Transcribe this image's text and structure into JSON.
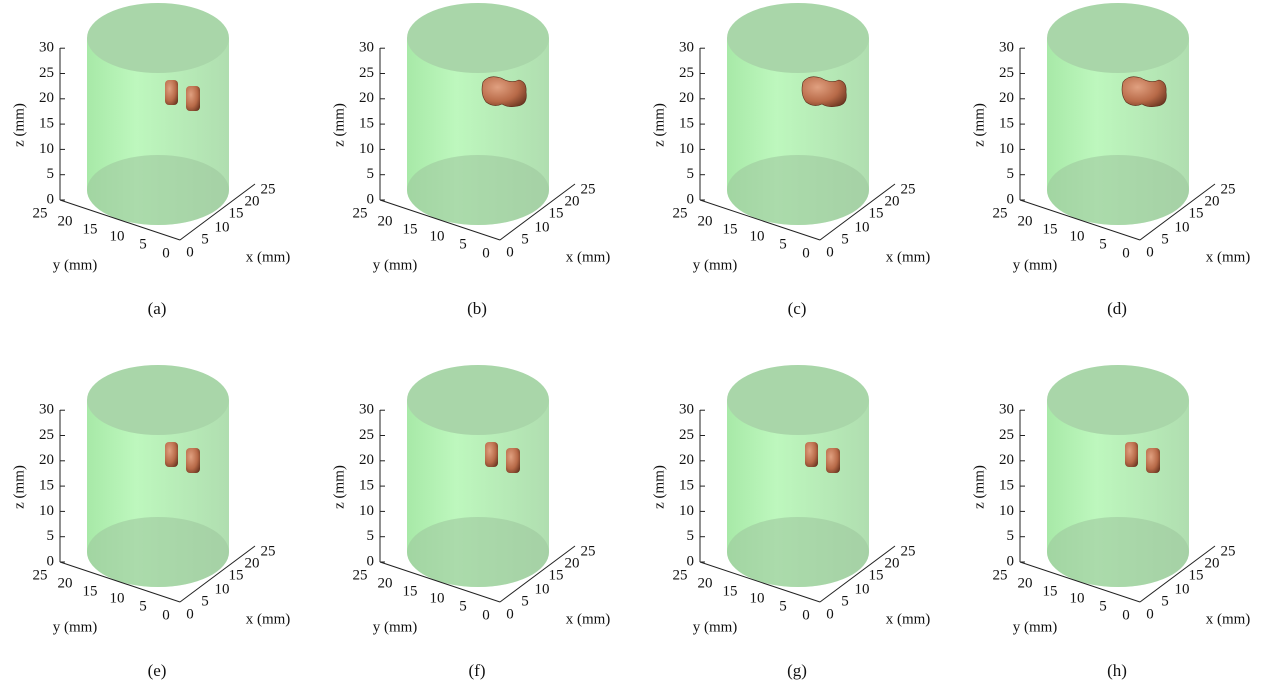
{
  "axes": {
    "x_label": "x (mm)",
    "y_label": "y (mm)",
    "z_label": "z (mm)",
    "zticks": [
      "0",
      "5",
      "10",
      "15",
      "20",
      "25",
      "30"
    ],
    "yticks": [
      "25",
      "20",
      "15",
      "10",
      "5",
      "0"
    ],
    "xticks": [
      "0",
      "5",
      "10",
      "15",
      "20",
      "25"
    ]
  },
  "panels": [
    {
      "caption": "(a)"
    },
    {
      "caption": "(b)"
    },
    {
      "caption": "(c)"
    },
    {
      "caption": "(d)"
    },
    {
      "caption": "(e)"
    },
    {
      "caption": "(f)"
    },
    {
      "caption": "(g)"
    },
    {
      "caption": "(h)"
    }
  ]
}
